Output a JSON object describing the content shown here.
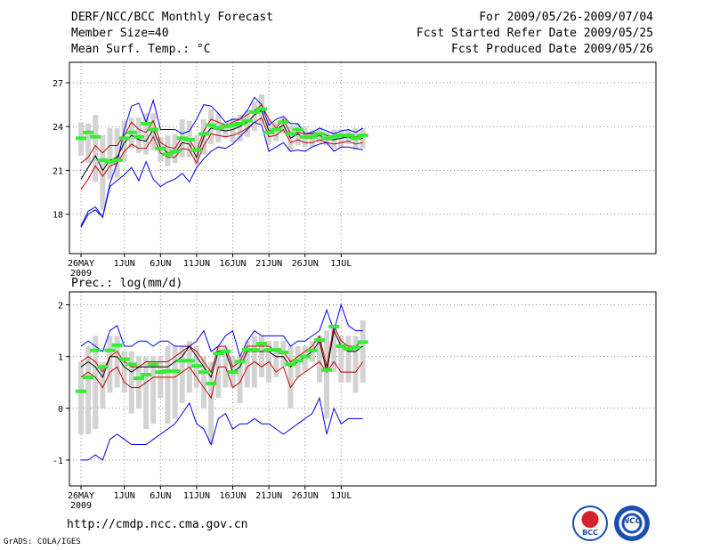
{
  "header": {
    "title": "DERF/NCC/BCC Monthly Forecast",
    "member_size": "Member Size=40",
    "variable": "Mean Surf. Temp.: °C",
    "period": "For 2009/05/26-2009/07/04",
    "started": "Fcst Started Refer Date 2009/05/25",
    "produced": "Fcst Produced Date 2009/05/26"
  },
  "footer": {
    "url": "http://cmdp.ncc.cma.gov.cn",
    "credit": "GrADS: COLA/IGES",
    "logo_bcc": "BCC",
    "logo_ncc": "NCC"
  },
  "colors": {
    "mean": "#000000",
    "spread": "#cc0000",
    "extreme": "#0000ee",
    "box": "#d3d3d3",
    "median": "#33ee33",
    "grid": "#888888"
  },
  "chart_data": [
    {
      "type": "line",
      "id": "temperature",
      "title": "",
      "ylabel": "Mean Surf. Temp.: °C",
      "ylim": [
        15.3,
        28.4
      ],
      "yticks": [
        18,
        21,
        24,
        27
      ],
      "x_tick_labels": [
        {
          "day": 0,
          "label": "26MAY",
          "sub": "2009"
        },
        {
          "day": 6,
          "label": "1JUN"
        },
        {
          "day": 11,
          "label": "6JUN"
        },
        {
          "day": 16,
          "label": "11JUN"
        },
        {
          "day": 21,
          "label": "16JUN"
        },
        {
          "day": 26,
          "label": "21JUN"
        },
        {
          "day": 31,
          "label": "26JUN"
        },
        {
          "day": 36,
          "label": "1JUL"
        }
      ],
      "n_days": 40,
      "series": [
        {
          "name": "max",
          "values": [
            17.2,
            18.2,
            18.5,
            17.8,
            20.1,
            21.5,
            23.8,
            25.4,
            25.6,
            24.3,
            25.8,
            23.8,
            23.8,
            23.8,
            23.5,
            23.7,
            24.5,
            25.5,
            25.4,
            24.9,
            24.3,
            24.5,
            24.5,
            25.1,
            26,
            25.5,
            24.1,
            24.5,
            24.7,
            24.2,
            24.2,
            23.5,
            23.6,
            23.9,
            23.7,
            23.5,
            23.7,
            23.8,
            23.6,
            23.9
          ]
        },
        {
          "name": "upper",
          "values": [
            21.5,
            21.9,
            22.7,
            22.2,
            22.7,
            22.7,
            23.4,
            24.3,
            23.8,
            23.6,
            24.4,
            22.9,
            22.6,
            22.5,
            23.3,
            23.1,
            22.3,
            23.7,
            24.5,
            24.3,
            24.1,
            24.3,
            24.5,
            24.8,
            25.1,
            25.5,
            24.5,
            23.9,
            24.5,
            23.5,
            23.6,
            23.5,
            23.5,
            23.6,
            23.4,
            23.3,
            23.4,
            23.5,
            23.3,
            23.5
          ]
        },
        {
          "name": "mean",
          "values": [
            20.4,
            21.2,
            22,
            21,
            21.7,
            21.9,
            22.9,
            23.4,
            23.1,
            23,
            23.8,
            22.6,
            22.2,
            22.2,
            22.9,
            22.8,
            21.9,
            23.3,
            23.9,
            23.8,
            23.7,
            23.8,
            24,
            24.3,
            24.8,
            25.1,
            23.7,
            23.8,
            24.1,
            23.2,
            23.5,
            23.2,
            23.2,
            23.4,
            23.1,
            23.1,
            23.2,
            23.3,
            23.1,
            23.2
          ]
        },
        {
          "name": "lower",
          "values": [
            19.7,
            20.4,
            21.3,
            20.6,
            21.3,
            21.5,
            22.3,
            22.8,
            22.5,
            22.5,
            23.3,
            22.2,
            21.9,
            21.9,
            22.5,
            22.4,
            21.5,
            22.7,
            23.5,
            23.4,
            23.3,
            23.4,
            23.6,
            23.9,
            24.3,
            24.6,
            23.3,
            23.4,
            23.8,
            22.9,
            23.1,
            22.9,
            22.9,
            23.1,
            22.9,
            22.8,
            22.9,
            23,
            22.8,
            22.9
          ]
        },
        {
          "name": "min",
          "values": [
            17.1,
            18,
            18.3,
            17.8,
            19.9,
            20.3,
            20.7,
            21.2,
            20.3,
            21.6,
            20.4,
            19.9,
            20.2,
            20.4,
            20.8,
            20.2,
            21.2,
            21.8,
            22.3,
            22.6,
            22.5,
            22.8,
            23.3,
            23.8,
            24.3,
            24.1,
            22.3,
            22.6,
            22.9,
            22.3,
            22.4,
            22.3,
            22.6,
            22.8,
            22.9,
            22.3,
            22.6,
            22.6,
            22.5,
            22.4
          ]
        }
      ],
      "boxes": [
        {
          "lo": 22,
          "hi": 24.3,
          "median": 23.2
        },
        {
          "lo": 21.5,
          "hi": 24.2,
          "median": 23.6
        },
        {
          "lo": 20.2,
          "hi": 24.8,
          "median": 23.3
        },
        {
          "lo": 18.3,
          "hi": 23.4,
          "median": 21.7
        },
        {
          "lo": 20.4,
          "hi": 23.9,
          "median": 21.6
        },
        {
          "lo": 20.5,
          "hi": 23.9,
          "median": 21.7
        },
        {
          "lo": 21.6,
          "hi": 24.4,
          "median": 23.2
        },
        {
          "lo": 22.5,
          "hi": 24.6,
          "median": 23.6
        },
        {
          "lo": 22.2,
          "hi": 24.6,
          "median": 23.3
        },
        {
          "lo": 22.1,
          "hi": 24.9,
          "median": 24.2
        },
        {
          "lo": 22.4,
          "hi": 24.9,
          "median": 23.8
        },
        {
          "lo": 21.6,
          "hi": 23.3,
          "median": 22.5
        },
        {
          "lo": 21.3,
          "hi": 23.4,
          "median": 22.1
        },
        {
          "lo": 21.5,
          "hi": 23.5,
          "median": 22.3
        },
        {
          "lo": 21.9,
          "hi": 24.5,
          "median": 23.2
        },
        {
          "lo": 21.9,
          "hi": 24.4,
          "median": 23.1
        },
        {
          "lo": 21.4,
          "hi": 23.4,
          "median": 22.4
        },
        {
          "lo": 22.1,
          "hi": 24.5,
          "median": 23.5
        },
        {
          "lo": 22.8,
          "hi": 25.2,
          "median": 24.1
        },
        {
          "lo": 22.9,
          "hi": 24.9,
          "median": 23.9
        },
        {
          "lo": 23.2,
          "hi": 24.3,
          "median": 24
        },
        {
          "lo": 22.9,
          "hi": 24.6,
          "median": 24.1
        },
        {
          "lo": 23,
          "hi": 24.8,
          "median": 24.2
        },
        {
          "lo": 23.3,
          "hi": 25.1,
          "median": 24.4
        },
        {
          "lo": 23.7,
          "hi": 25.7,
          "median": 25
        },
        {
          "lo": 24.2,
          "hi": 26.2,
          "median": 25.2
        },
        {
          "lo": 22.8,
          "hi": 24.5,
          "median": 23.6
        },
        {
          "lo": 23,
          "hi": 24.3,
          "median": 23.8
        },
        {
          "lo": 23.5,
          "hi": 24.6,
          "median": 24.3
        },
        {
          "lo": 22.3,
          "hi": 24.1,
          "median": 23.5
        },
        {
          "lo": 22.7,
          "hi": 24.2,
          "median": 23.8
        },
        {
          "lo": 22.6,
          "hi": 24,
          "median": 23.3
        },
        {
          "lo": 22.6,
          "hi": 23.8,
          "median": 23.3
        },
        {
          "lo": 22.9,
          "hi": 23.9,
          "median": 23.5
        },
        {
          "lo": 22.7,
          "hi": 23.6,
          "median": 23.2
        },
        {
          "lo": 22.5,
          "hi": 23.8,
          "median": 23.3
        },
        {
          "lo": 22.6,
          "hi": 23.8,
          "median": 23.4
        },
        {
          "lo": 22.8,
          "hi": 23.8,
          "median": 23.4
        },
        {
          "lo": 22.4,
          "hi": 23.9,
          "median": 23.2
        },
        {
          "lo": 22.5,
          "hi": 23.9,
          "median": 23.4
        }
      ]
    },
    {
      "type": "line",
      "id": "precipitation",
      "title": "Prec.: log(mm/d)",
      "ylabel": "Prec.: log(mm/d)",
      "ylim": [
        -1.5,
        2.25
      ],
      "yticks": [
        -1,
        0,
        1,
        2
      ],
      "x_tick_labels": [
        {
          "day": 0,
          "label": "26MAY",
          "sub": "2009"
        },
        {
          "day": 6,
          "label": "1JUN"
        },
        {
          "day": 11,
          "label": "6JUN"
        },
        {
          "day": 16,
          "label": "11JUN"
        },
        {
          "day": 21,
          "label": "16JUN"
        },
        {
          "day": 26,
          "label": "21JUN"
        },
        {
          "day": 31,
          "label": "26JUN"
        },
        {
          "day": 36,
          "label": "1JUL"
        }
      ],
      "n_days": 40,
      "series": [
        {
          "name": "max",
          "values": [
            1.2,
            1.3,
            1.2,
            1.1,
            1.5,
            1.6,
            1.2,
            1.2,
            1.3,
            1.3,
            1.2,
            1.3,
            1.3,
            1.2,
            1.2,
            1.2,
            1.3,
            1.5,
            1.1,
            1.2,
            1.4,
            1.5,
            1.0,
            1.3,
            1.5,
            1.4,
            1.4,
            1.4,
            1.4,
            1.2,
            1.3,
            1.3,
            1.4,
            1.5,
            1.9,
            1.5,
            2.0,
            1.6,
            1.5,
            1.5
          ]
        },
        {
          "name": "upper",
          "values": [
            0.9,
            1.0,
            0.9,
            0.7,
            1.0,
            1.1,
            0.9,
            0.8,
            0.8,
            0.9,
            0.9,
            0.9,
            0.9,
            1.0,
            1.1,
            1.2,
            1.1,
            0.9,
            0.7,
            1.2,
            1.2,
            0.8,
            0.9,
            1.2,
            1.2,
            1.2,
            1.2,
            1.1,
            1.1,
            0.9,
            1.0,
            1.1,
            1.2,
            1.4,
            0.8,
            1.6,
            1.3,
            1.2,
            1.2,
            1.3
          ]
        },
        {
          "name": "mean",
          "values": [
            0.8,
            0.9,
            0.8,
            0.6,
            1.0,
            1.0,
            0.8,
            0.7,
            0.8,
            0.8,
            0.8,
            0.8,
            0.8,
            0.9,
            1.0,
            1.2,
            1.0,
            0.8,
            0.6,
            1.1,
            1.1,
            0.7,
            0.8,
            1.1,
            1.1,
            1.1,
            1.1,
            1.0,
            1.0,
            0.8,
            0.9,
            1.0,
            1.1,
            1.3,
            0.7,
            1.5,
            1.2,
            1.1,
            1.1,
            1.2
          ]
        },
        {
          "name": "lower",
          "values": [
            0.6,
            0.7,
            0.6,
            0.4,
            0.7,
            0.8,
            0.5,
            0.4,
            0.4,
            0.5,
            0.6,
            0.6,
            0.6,
            0.6,
            0.7,
            0.8,
            0.6,
            0.4,
            0.2,
            0.8,
            0.8,
            0.4,
            0.5,
            0.8,
            0.9,
            0.8,
            0.9,
            0.7,
            0.8,
            0.4,
            0.6,
            0.7,
            0.8,
            0.9,
            0.7,
            0.9,
            0.7,
            0.7,
            0.7,
            0.9
          ]
        },
        {
          "name": "min",
          "values": [
            -1.0,
            -1.0,
            -0.9,
            -1.0,
            -0.6,
            -0.5,
            -0.6,
            -0.7,
            -0.7,
            -0.7,
            -0.6,
            -0.5,
            -0.4,
            -0.3,
            -0.1,
            0.1,
            -0.3,
            -0.4,
            -0.7,
            -0.2,
            -0.1,
            -0.4,
            -0.3,
            -0.3,
            -0.2,
            -0.3,
            -0.3,
            -0.4,
            -0.5,
            -0.4,
            -0.3,
            -0.2,
            -0.1,
            0.2,
            -0.5,
            0.0,
            -0.3,
            -0.2,
            -0.2,
            -0.2
          ]
        }
      ],
      "boxes": [
        {
          "lo": -0.5,
          "hi": 0.9,
          "median": 0.33
        },
        {
          "lo": -0.5,
          "hi": 1.2,
          "median": 0.6
        },
        {
          "lo": -0.4,
          "hi": 1.4,
          "median": 1.12
        },
        {
          "lo": 0.0,
          "hi": 0.9,
          "median": 0.8
        },
        {
          "lo": 0.3,
          "hi": 1.4,
          "median": 1.12
        },
        {
          "lo": 0.4,
          "hi": 1.4,
          "median": 1.22
        },
        {
          "lo": 0.3,
          "hi": 1.1,
          "median": 0.95
        },
        {
          "lo": -0.1,
          "hi": 1.1,
          "median": 0.85
        },
        {
          "lo": 0.0,
          "hi": 1.0,
          "median": 0.58
        },
        {
          "lo": -0.4,
          "hi": 1.0,
          "median": 0.65
        },
        {
          "lo": -0.3,
          "hi": 1.0,
          "median": 0.85
        },
        {
          "lo": 0.2,
          "hi": 1.0,
          "median": 0.7
        },
        {
          "lo": -0.3,
          "hi": 1.2,
          "median": 0.72
        },
        {
          "lo": -0.2,
          "hi": 1.2,
          "median": 0.72
        },
        {
          "lo": 0.1,
          "hi": 1.2,
          "median": 0.92
        },
        {
          "lo": 0.3,
          "hi": 1.3,
          "median": 0.92
        },
        {
          "lo": 0.4,
          "hi": 1.2,
          "median": 0.82
        },
        {
          "lo": 0.0,
          "hi": 1.0,
          "median": 0.7
        },
        {
          "lo": -0.7,
          "hi": 0.9,
          "median": 0.48
        },
        {
          "lo": 0.2,
          "hi": 1.2,
          "median": 1.06
        },
        {
          "lo": 0.4,
          "hi": 1.2,
          "median": 1.1
        },
        {
          "lo": 0.4,
          "hi": 1.0,
          "median": 0.7
        },
        {
          "lo": 0.1,
          "hi": 1.0,
          "median": 0.9
        },
        {
          "lo": 0.4,
          "hi": 1.3,
          "median": 1.13
        },
        {
          "lo": 0.4,
          "hi": 1.4,
          "median": 1.13
        },
        {
          "lo": 0.6,
          "hi": 1.4,
          "median": 1.25
        },
        {
          "lo": 0.5,
          "hi": 1.3,
          "median": 1.13
        },
        {
          "lo": 0.6,
          "hi": 1.3,
          "median": 1.13
        },
        {
          "lo": 0.8,
          "hi": 1.3,
          "median": 1.08
        },
        {
          "lo": 0.0,
          "hi": 1.2,
          "median": 0.85
        },
        {
          "lo": 0.6,
          "hi": 1.2,
          "median": 0.92
        },
        {
          "lo": 0.7,
          "hi": 1.2,
          "median": 1.0
        },
        {
          "lo": 0.9,
          "hi": 1.3,
          "median": 1.12
        },
        {
          "lo": 0.5,
          "hi": 1.4,
          "median": 1.32
        },
        {
          "lo": -0.2,
          "hi": 1.5,
          "median": 0.74
        },
        {
          "lo": 0.7,
          "hi": 1.6,
          "median": 1.58
        },
        {
          "lo": 0.5,
          "hi": 1.4,
          "median": 1.2
        },
        {
          "lo": 0.5,
          "hi": 1.4,
          "median": 1.15
        },
        {
          "lo": 0.3,
          "hi": 1.4,
          "median": 1.18
        },
        {
          "lo": 0.5,
          "hi": 1.7,
          "median": 1.28
        }
      ]
    }
  ]
}
